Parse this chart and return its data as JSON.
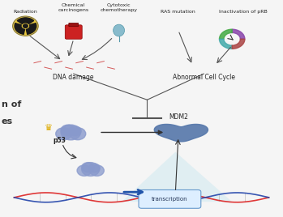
{
  "bg_color": "#f5f5f5",
  "labels": {
    "radiation": "Radiation",
    "chemical": "Chemical\ncarcinogens",
    "cytotoxic": "Cytotoxic\nchemotherapy",
    "ras": "RAS mutation",
    "inactivation": "Inactivation of pRB",
    "dna_damage": "DNA damage",
    "abnormal": "Abnormal Cell Cycle",
    "mdm2": "MDM2",
    "p53": "p53",
    "transcription": "transcription",
    "left_text1": "n of",
    "left_text2": "es"
  },
  "colors": {
    "bg_color": "#f5f5f5",
    "radiation_symbol": "#e8c840",
    "radiation_inner": "#1a1a1a",
    "chemical_red": "#cc2222",
    "cytotoxic_blue": "#88bbcc",
    "p53_cloud": "#8899cc",
    "mdm2_blob": "#5577aa",
    "dna_red": "#dd2222",
    "dna_blue": "#2244aa",
    "arrow_dark": "#333333",
    "transcription_box": "#ddeeff",
    "transcription_border": "#6699cc",
    "light_blue_triangle": "#cce8f0",
    "crown_gold": "#ddaa00",
    "inhibit_line": "#333333",
    "text_color": "#222222",
    "left_text_color": "#333333",
    "arrow_blue": "#2255aa",
    "arrow_gray": "#555555"
  }
}
